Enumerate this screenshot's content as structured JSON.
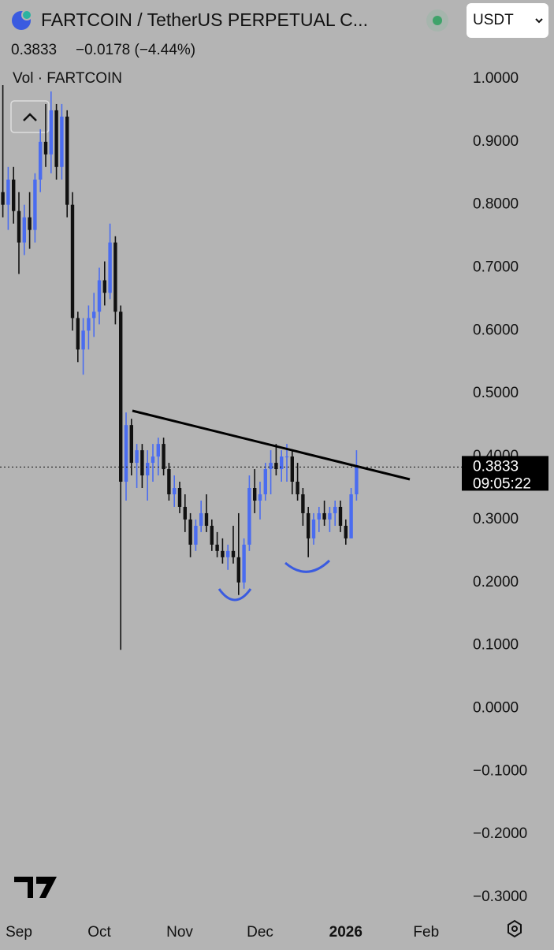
{
  "header": {
    "title": "FARTCOIN / TetherUS PERPETUAL C...",
    "price": "0.3833",
    "change": "−0.0178 (−4.44%)",
    "currency": "USDT"
  },
  "chart_data": {
    "type": "candlestick",
    "legend": "Vol · FARTCOIN",
    "categories": [
      null,
      null,
      null,
      "Sep",
      null,
      null,
      null,
      null,
      null,
      null,
      null,
      null,
      null,
      null,
      null,
      null,
      null,
      null,
      "Oct",
      null,
      null,
      null,
      null,
      null,
      null,
      null,
      null,
      null,
      null,
      null,
      null,
      null,
      null,
      "Nov",
      null,
      null,
      null,
      null,
      null,
      null,
      null,
      null,
      null,
      null,
      null,
      null,
      null,
      null,
      "Dec",
      null,
      null,
      null,
      null,
      null,
      null,
      null,
      null,
      null,
      null,
      null,
      null,
      null,
      null,
      null,
      "2026",
      null,
      null,
      null,
      null,
      null,
      null,
      null,
      null,
      null,
      null,
      null,
      null,
      null,
      null,
      "Feb"
    ],
    "open": [
      0.82,
      0.8,
      0.84,
      0.79,
      0.74,
      0.78,
      0.76,
      0.84,
      0.9,
      0.88,
      0.95,
      0.86,
      0.94,
      0.8,
      0.62,
      0.57,
      0.6,
      0.62,
      0.63,
      0.68,
      0.66,
      0.74,
      0.63,
      0.36,
      0.45,
      0.39,
      0.41,
      0.37,
      0.39,
      0.4,
      0.42,
      0.38,
      0.34,
      0.35,
      0.32,
      0.3,
      0.26,
      0.29,
      0.31,
      0.29,
      0.26,
      0.25,
      0.24,
      0.25,
      0.24,
      0.2,
      0.26,
      0.35,
      0.33,
      0.34,
      0.38,
      0.39,
      0.38,
      0.4,
      0.4,
      0.36,
      0.34,
      0.31,
      0.27,
      0.3,
      0.31,
      0.3,
      0.31,
      0.32,
      0.29,
      0.27,
      0.34,
      null,
      null,
      null,
      null,
      null,
      null,
      null,
      null,
      null,
      null,
      null,
      null,
      null
    ],
    "high": [
      0.99,
      0.86,
      0.86,
      0.82,
      0.8,
      0.82,
      0.85,
      0.92,
      0.96,
      0.98,
      0.96,
      0.96,
      0.95,
      0.82,
      0.63,
      0.62,
      0.64,
      0.66,
      0.7,
      0.71,
      0.77,
      0.75,
      0.64,
      0.47,
      0.46,
      0.42,
      0.42,
      0.41,
      0.42,
      0.43,
      0.43,
      0.39,
      0.37,
      0.36,
      0.34,
      0.31,
      0.3,
      0.33,
      0.34,
      0.3,
      0.28,
      0.27,
      0.26,
      0.29,
      0.31,
      0.27,
      0.37,
      0.38,
      0.36,
      0.39,
      0.41,
      0.42,
      0.41,
      0.42,
      0.41,
      0.39,
      0.35,
      0.32,
      0.31,
      0.32,
      0.33,
      0.32,
      0.33,
      0.33,
      0.3,
      0.35,
      0.41,
      null,
      null,
      null,
      null,
      null,
      null,
      null,
      null,
      null,
      null,
      null,
      null,
      null
    ],
    "low": [
      0.78,
      0.76,
      0.77,
      0.69,
      0.72,
      0.73,
      0.74,
      0.82,
      0.86,
      0.85,
      0.84,
      0.84,
      0.78,
      0.6,
      0.55,
      0.53,
      0.57,
      0.59,
      0.61,
      0.64,
      0.65,
      0.61,
      0.093,
      0.33,
      0.37,
      0.35,
      0.35,
      0.33,
      0.36,
      0.37,
      0.37,
      0.33,
      0.32,
      0.31,
      0.28,
      0.24,
      0.25,
      0.28,
      0.28,
      0.25,
      0.24,
      0.23,
      0.22,
      0.23,
      0.18,
      0.19,
      0.25,
      0.31,
      0.3,
      0.33,
      0.34,
      0.37,
      0.36,
      0.36,
      0.34,
      0.33,
      0.29,
      0.24,
      0.26,
      0.28,
      0.29,
      0.28,
      0.29,
      0.28,
      0.26,
      0.27,
      0.33,
      null,
      null,
      null,
      null,
      null,
      null,
      null,
      null,
      null,
      null,
      null,
      null,
      null
    ],
    "close": [
      0.8,
      0.84,
      0.79,
      0.74,
      0.78,
      0.76,
      0.84,
      0.9,
      0.88,
      0.95,
      0.86,
      0.94,
      0.8,
      0.62,
      0.57,
      0.6,
      0.62,
      0.63,
      0.68,
      0.66,
      0.74,
      0.63,
      0.36,
      0.45,
      0.39,
      0.41,
      0.37,
      0.39,
      0.4,
      0.42,
      0.38,
      0.34,
      0.35,
      0.32,
      0.3,
      0.26,
      0.29,
      0.31,
      0.29,
      0.26,
      0.25,
      0.24,
      0.25,
      0.24,
      0.2,
      0.26,
      0.35,
      0.33,
      0.34,
      0.38,
      0.39,
      0.38,
      0.4,
      0.4,
      0.36,
      0.34,
      0.31,
      0.27,
      0.3,
      0.31,
      0.3,
      0.31,
      0.32,
      0.29,
      0.27,
      0.34,
      0.3833,
      null,
      null,
      null,
      null,
      null,
      null,
      null,
      null,
      null,
      null,
      null,
      null,
      null
    ],
    "up_color": "#4a6cf0",
    "down_color": "#111111",
    "ylim": [
      -0.3,
      1.0
    ],
    "yticks": [
      {
        "value": 1.0,
        "label": "1.0000"
      },
      {
        "value": 0.9,
        "label": "0.9000"
      },
      {
        "value": 0.8,
        "label": "0.8000"
      },
      {
        "value": 0.7,
        "label": "0.7000"
      },
      {
        "value": 0.6,
        "label": "0.6000"
      },
      {
        "value": 0.5,
        "label": "0.5000"
      },
      {
        "value": 0.4,
        "label": "0.4000"
      },
      {
        "value": 0.3,
        "label": "0.3000"
      },
      {
        "value": 0.2,
        "label": "0.2000"
      },
      {
        "value": 0.1,
        "label": "0.1000"
      },
      {
        "value": 0.0,
        "label": "0.0000"
      },
      {
        "value": -0.1,
        "label": "−0.1000"
      },
      {
        "value": -0.2,
        "label": "−0.2000"
      },
      {
        "value": -0.3,
        "label": "−0.3000"
      }
    ],
    "last_price": 0.3833,
    "countdown": "09:05:22"
  }
}
